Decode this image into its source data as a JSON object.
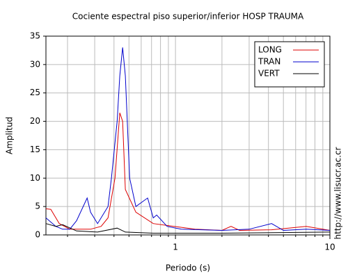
{
  "chart_data": {
    "type": "line",
    "title": "Cociente espectral piso superior/inferior  HOSP TRAUMA",
    "x_label": "Periodo (s)",
    "y_label": "Amplitud",
    "side_note": "http://www.lisucr.ac.cr",
    "x_log": true,
    "grid": true,
    "legend": "upper right",
    "xlim": [
      0.145,
      10
    ],
    "ylim": [
      0,
      35
    ],
    "xticks": [
      1,
      10
    ],
    "xminor_ticks": [
      0.2,
      0.3,
      0.4,
      0.5,
      0.6,
      0.7,
      0.8,
      0.9,
      2,
      3,
      4,
      5,
      6,
      7,
      8,
      9
    ],
    "yticks": [
      0,
      5,
      10,
      15,
      20,
      25,
      30,
      35
    ],
    "series": [
      {
        "name": "LONG",
        "color": "#dd0000",
        "x": [
          0.145,
          0.156,
          0.177,
          0.207,
          0.282,
          0.33,
          0.366,
          0.406,
          0.436,
          0.455,
          0.474,
          0.554,
          0.718,
          0.98,
          1.34,
          2.0,
          2.29,
          2.6,
          4.19,
          7.03,
          10
        ],
        "values": [
          4.6,
          4.5,
          2,
          1,
          1,
          1.5,
          3,
          10,
          21.5,
          20,
          8,
          4,
          2,
          1.5,
          1,
          0.8,
          1.5,
          0.8,
          0.9,
          1.5,
          0.8
        ]
      },
      {
        "name": "TRAN",
        "color": "#0000cc",
        "x": [
          0.145,
          0.168,
          0.186,
          0.207,
          0.229,
          0.268,
          0.282,
          0.313,
          0.366,
          0.385,
          0.419,
          0.436,
          0.455,
          0.474,
          0.505,
          0.554,
          0.66,
          0.718,
          0.756,
          0.883,
          1.09,
          2.0,
          3.0,
          4.19,
          5.0,
          7.03,
          10
        ],
        "values": [
          3,
          1.5,
          1,
          1,
          2.5,
          6.5,
          4,
          2,
          5,
          10,
          20,
          28,
          33,
          28,
          10,
          5,
          6.5,
          3,
          3.5,
          1.5,
          1,
          0.8,
          1,
          2,
          0.8,
          1,
          0.8
        ]
      },
      {
        "name": "VERT",
        "color": "#000000",
        "x": [
          0.145,
          0.168,
          0.186,
          0.229,
          0.313,
          0.419,
          0.474,
          0.718,
          2.0,
          10
        ],
        "values": [
          2,
          1.5,
          1.8,
          0.7,
          0.5,
          1.2,
          0.5,
          0.3,
          0.3,
          0.5
        ]
      }
    ]
  }
}
